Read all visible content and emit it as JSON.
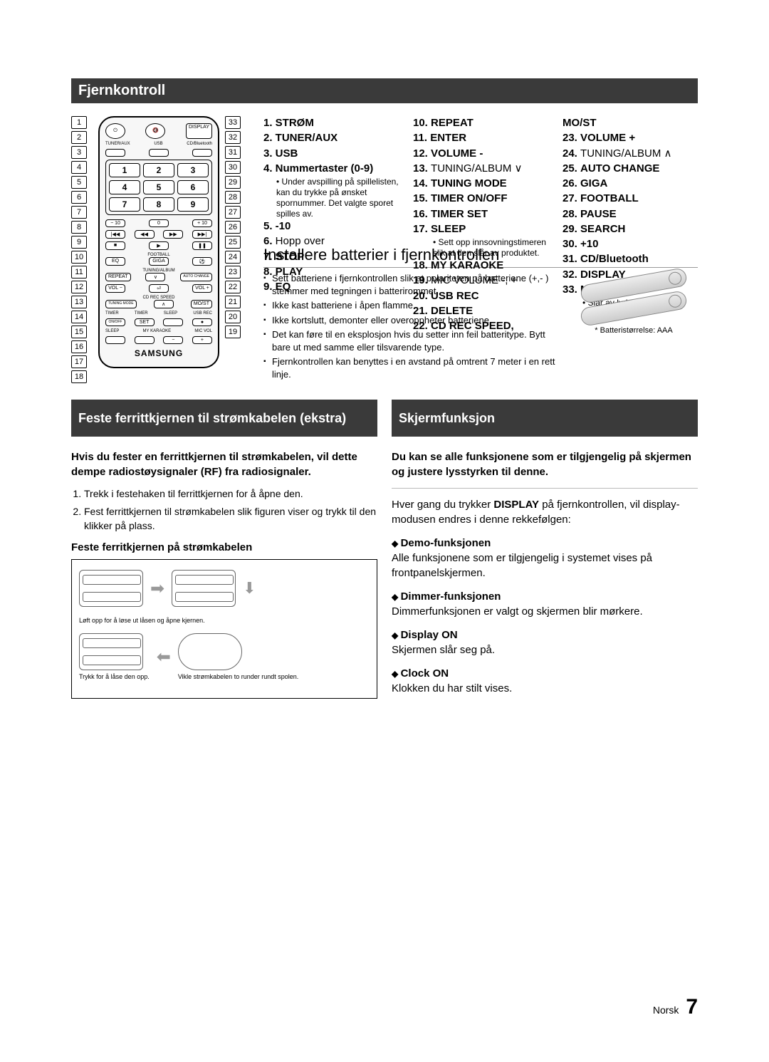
{
  "sections": {
    "remote_title": "Fjernkontroll",
    "battery_title": "Installere batterier i fjernkontrollen",
    "ferrite_title": "Feste ferrittkjernen til strømkabelen (ekstra)",
    "display_title": "Skjermfunksjon"
  },
  "callouts_left": [
    "1",
    "2",
    "3",
    "4",
    "5",
    "6",
    "7",
    "8",
    "9",
    "10",
    "11",
    "12",
    "13",
    "14",
    "15",
    "16",
    "17",
    "18"
  ],
  "callouts_right": [
    "33",
    "32",
    "31",
    "30",
    "29",
    "28",
    "27",
    "26",
    "25",
    "24",
    "23",
    "22",
    "21",
    "20",
    "19"
  ],
  "remote": {
    "top_labels": [
      "TUNER/AUX",
      "USB",
      "CD/Bluetooth"
    ],
    "row_disp": "DISPLAY",
    "numpad": [
      "1",
      "2",
      "3",
      "4",
      "5",
      "6",
      "7",
      "8",
      "9"
    ],
    "minus10": "− 10",
    "zero": "0",
    "plus10": "+ 10",
    "skip_b": "|◀◀",
    "rew": "◀◀",
    "ff": "▶▶",
    "skip_f": "▶▶|",
    "stop": "■",
    "play": "▶",
    "pause": "❚❚",
    "football": "FOOTBALL",
    "eq": "EQ",
    "giga": "GIGA",
    "tuning": "TUNING/ALBUM",
    "repeat": "REPEAT",
    "auto": "AUTO CHANGE",
    "vol_m": "VOL −",
    "enter": "⏎",
    "vol_p": "VOL +",
    "cdrec": "CD REC SPEED",
    "tuning_mode": "TUNING MODE",
    "most": "MO/ST",
    "timer": "TIMER",
    "timer_on": "ON/OFF",
    "timer_set": "SET",
    "sleep_lbl": "SLEEP",
    "usbrec": "USB REC",
    "sleep": "SLEEP",
    "karaoke": "MY KARAOKE",
    "micvol": "MIC VOL",
    "mic_m": "−",
    "mic_p": "+",
    "brand": "SAMSUNG"
  },
  "legend": {
    "col1": [
      {
        "n": "1.",
        "t": "STRØM",
        "b": true
      },
      {
        "n": "2.",
        "t": "TUNER/AUX",
        "b": true
      },
      {
        "n": "3.",
        "t": "USB",
        "b": true
      },
      {
        "n": "4.",
        "t": "Nummertaster (0-9)",
        "b": true
      }
    ],
    "col1_sub": "Under avspilling på spillelisten, kan du trykke på ønsket spornummer. Det valgte sporet spilles av.",
    "col1b": [
      {
        "n": "5.",
        "t": "-10",
        "b": true
      },
      {
        "n": "6.",
        "t": "Hopp over",
        "b": false
      },
      {
        "n": "7.",
        "t": "STOP",
        "b": true
      },
      {
        "n": "8.",
        "t": "PLAY",
        "b": true
      },
      {
        "n": "9.",
        "t": "EQ",
        "b": true
      }
    ],
    "col2": [
      {
        "n": "10.",
        "t": "REPEAT",
        "b": true
      },
      {
        "n": "11.",
        "t": "ENTER",
        "b": true
      },
      {
        "n": "12.",
        "t": "VOLUME -",
        "b": true
      },
      {
        "n": "13.",
        "t": "TUNING/ALBUM ∨",
        "b": false
      },
      {
        "n": "14.",
        "t": "TUNING MODE",
        "b": true
      },
      {
        "n": "15.",
        "t": "TIMER ON/OFF",
        "b": true
      },
      {
        "n": "16.",
        "t": "TIMER SET",
        "b": true
      },
      {
        "n": "17.",
        "t": "SLEEP",
        "b": true
      }
    ],
    "col2_sub1": "Sett opp innsovningstimeren slik at den slår av produktet.",
    "col2b": [
      {
        "n": "18.",
        "t": "MY KARAOKE",
        "b": true
      },
      {
        "n": "19.",
        "t": "MIC VOLUME -, +",
        "b": false
      },
      {
        "n": "20.",
        "t": "USB REC",
        "b": true
      },
      {
        "n": "21.",
        "t": "DELETE",
        "b": true
      },
      {
        "n": "22.",
        "t": "CD REC SPEED,",
        "b": true
      }
    ],
    "col3": [
      {
        "n": "",
        "t": "MO/ST",
        "b": true
      },
      {
        "n": "23.",
        "t": "VOLUME +",
        "b": true
      },
      {
        "n": "24.",
        "t": "TUNING/ALBUM ∧",
        "b": false
      },
      {
        "n": "25.",
        "t": "AUTO CHANGE",
        "b": true
      },
      {
        "n": "26.",
        "t": "GIGA",
        "b": true
      },
      {
        "n": "27.",
        "t": "FOOTBALL",
        "b": true
      },
      {
        "n": "28.",
        "t": "PAUSE",
        "b": true
      },
      {
        "n": "29.",
        "t": "SEARCH",
        "b": true
      },
      {
        "n": "30.",
        "t": "+10",
        "b": true
      },
      {
        "n": "31.",
        "t": "CD/Bluetooth",
        "b": true
      },
      {
        "n": "32.",
        "t": "DISPLAY",
        "b": true
      },
      {
        "n": "33.",
        "t": "MUTE",
        "b": true
      }
    ],
    "col3_sub": "Slår av lyden midlertidig."
  },
  "battery": {
    "bullets": [
      "Sett batteriene i fjernkontrollen slik at polariteten på batteriene (+,- ) stemmer med tegningen i batterirommet.",
      "Ikke kast batteriene i åpen flamme.",
      "Ikke kortslutt, demonter eller overoppheter batteriene.",
      "Det kan føre til en eksplosjon hvis du setter inn feil batteritype. Bytt bare ut med samme eller tilsvarende type.",
      "Fjernkontrollen kan benyttes i en avstand på omtrent 7 meter i en rett linje."
    ],
    "size_note": "* Batteristørrelse: AAA"
  },
  "ferrite": {
    "intro": "Hvis du fester en ferrittkjernen til strømkabelen, vil dette dempe radiostøysignaler (RF) fra radiosignaler.",
    "steps": [
      "Trekk i festehaken til ferrittkjernen for å åpne den.",
      "Fest ferrittkjernen til strømkabelen slik figuren viser og trykk til den klikker på plass."
    ],
    "subhead": "Feste ferritkjernen på strømkabelen",
    "cap1": "Løft opp for å løse ut låsen og åpne kjernen.",
    "cap2_left": "Trykk for å låse den opp.",
    "cap2_right": "Vikle strømkabelen to runder rundt spolen."
  },
  "display": {
    "intro": "Du kan se alle funksjonene som er tilgjengelig på skjermen og justere lysstyrken til denne.",
    "line2a": "Hver gang du trykker ",
    "line2b": "DISPLAY",
    "line2c": " på fjernkontrollen, vil display-modusen endres i denne rekkefølgen:",
    "items": [
      {
        "t": "Demo-funksjonen",
        "d": "Alle funksjonene som er tilgjengelig i systemet vises på frontpanelskjermen."
      },
      {
        "t": "Dimmer-funksjonen",
        "d": "Dimmerfunksjonen er valgt og skjermen blir mørkere."
      },
      {
        "t": "Display ON",
        "d": "Skjermen slår seg på."
      },
      {
        "t": "Clock ON",
        "d": "Klokken du har stilt vises."
      }
    ]
  },
  "footer": {
    "lang": "Norsk",
    "page": "7"
  }
}
